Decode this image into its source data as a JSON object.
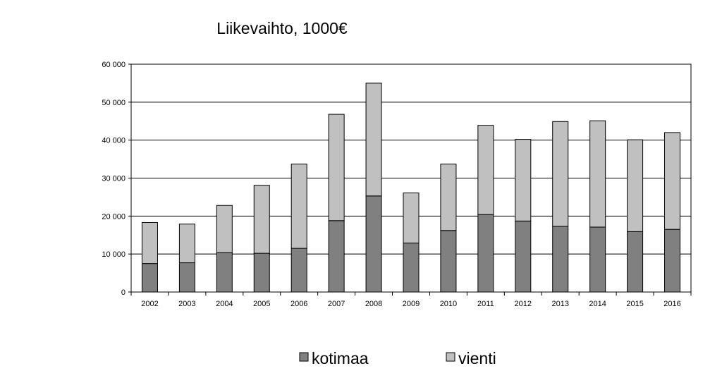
{
  "chart_data": {
    "type": "bar",
    "stacked": true,
    "title": "Liikevaihto,  1000€",
    "xlabel": "",
    "ylabel": "",
    "ylim": [
      0,
      60000
    ],
    "yticks": [
      0,
      10000,
      20000,
      30000,
      40000,
      50000,
      60000
    ],
    "ytick_labels": [
      "0",
      "10 000",
      "20 000",
      "30 000",
      "40 000",
      "50 000",
      "60 000"
    ],
    "grid": true,
    "legend_position": "bottom",
    "categories": [
      "2002",
      "2003",
      "2004",
      "2005",
      "2006",
      "2007",
      "2008",
      "2009",
      "2010",
      "2011",
      "2012",
      "2013",
      "2014",
      "2015",
      "2016"
    ],
    "series": [
      {
        "name": "kotimaa",
        "color": "#808080",
        "values": [
          7500,
          7700,
          10400,
          10200,
          11500,
          18800,
          25300,
          12900,
          16200,
          20400,
          18700,
          17300,
          17100,
          15900,
          16500
        ]
      },
      {
        "name": "vienti",
        "color": "#c0c0c0",
        "values": [
          10800,
          10200,
          12400,
          17900,
          22200,
          28000,
          29700,
          13200,
          17500,
          23500,
          21500,
          27600,
          28000,
          24200,
          25500
        ]
      }
    ]
  }
}
